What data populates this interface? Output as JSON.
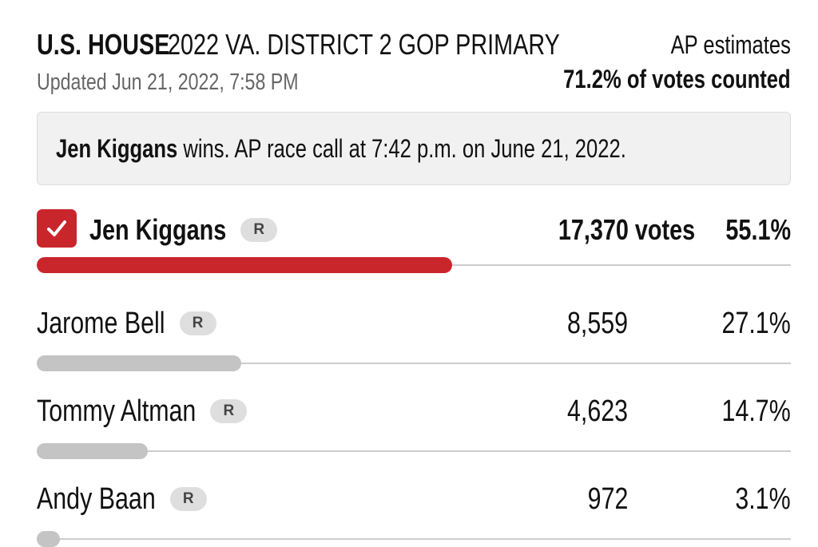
{
  "header": {
    "race": "U.S. HOUSE",
    "contest": "2022 VA. DISTRICT 2 GOP PRIMARY",
    "updated": "Updated Jun 21, 2022, 7:58 PM",
    "source": "AP estimates",
    "counted": "71.2% of votes counted"
  },
  "call": {
    "winner": "Jen Kiggans",
    "text": "wins. AP race call at 7:42 p.m. on June 21, 2022."
  },
  "candidates": [
    {
      "name": "Jen Kiggans",
      "party": "R",
      "votes": "17,370 votes",
      "pct": 55.1,
      "pct_label": "55.1%",
      "winner": true
    },
    {
      "name": "Jarome Bell",
      "party": "R",
      "votes": "8,559",
      "pct": 27.1,
      "pct_label": "27.1%",
      "winner": false
    },
    {
      "name": "Tommy Altman",
      "party": "R",
      "votes": "4,623",
      "pct": 14.7,
      "pct_label": "14.7%",
      "winner": false
    },
    {
      "name": "Andy Baan",
      "party": "R",
      "votes": "972",
      "pct": 3.1,
      "pct_label": "3.1%",
      "winner": false
    }
  ]
}
